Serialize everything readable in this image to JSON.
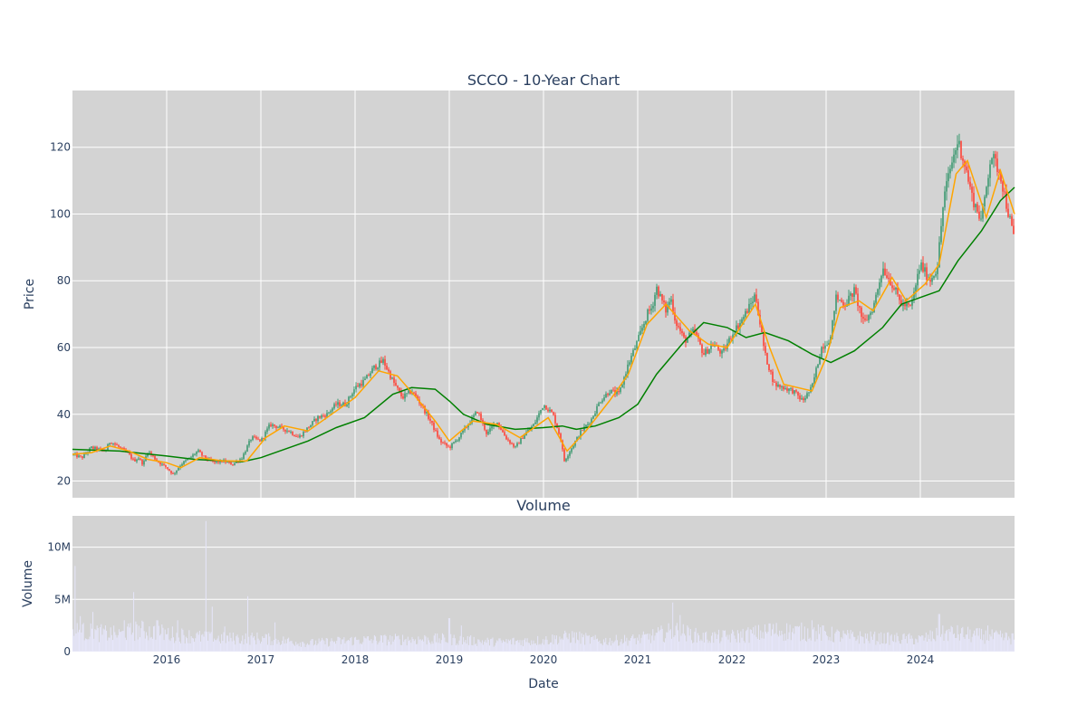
{
  "chart_data": [
    {
      "type": "candlestick",
      "title": "SCCO - 10-Year Chart",
      "ylabel": "Price",
      "xlabel": "",
      "x_range": [
        2015.0,
        2025.0
      ],
      "ylim": [
        15,
        137
      ],
      "yticks": [
        "20",
        "40",
        "60",
        "80",
        "100",
        "120"
      ],
      "ytick_values": [
        20,
        40,
        60,
        80,
        100,
        120
      ],
      "grid": true,
      "colors": {
        "increasing": "#3d9970",
        "decreasing": "#ff4136",
        "sma50": "orange",
        "sma200": "green",
        "background": "#d3d3d3",
        "grid": "#ffffff"
      },
      "close_anchors": [
        [
          2015.0,
          28
        ],
        [
          2015.1,
          27
        ],
        [
          2015.2,
          30
        ],
        [
          2015.35,
          29
        ],
        [
          2015.4,
          32
        ],
        [
          2015.5,
          30
        ],
        [
          2015.6,
          28
        ],
        [
          2015.65,
          26
        ],
        [
          2015.7,
          27
        ],
        [
          2015.75,
          25
        ],
        [
          2015.8,
          29
        ],
        [
          2015.9,
          26
        ],
        [
          2016.0,
          24
        ],
        [
          2016.07,
          22
        ],
        [
          2016.15,
          25
        ],
        [
          2016.25,
          27
        ],
        [
          2016.33,
          29
        ],
        [
          2016.4,
          27
        ],
        [
          2016.5,
          25.5
        ],
        [
          2016.6,
          26
        ],
        [
          2016.7,
          25
        ],
        [
          2016.8,
          27
        ],
        [
          2016.9,
          33
        ],
        [
          2017.0,
          32
        ],
        [
          2017.1,
          37
        ],
        [
          2017.2,
          36
        ],
        [
          2017.3,
          35
        ],
        [
          2017.4,
          33
        ],
        [
          2017.5,
          36
        ],
        [
          2017.6,
          39
        ],
        [
          2017.7,
          40
        ],
        [
          2017.8,
          43
        ],
        [
          2017.9,
          43
        ],
        [
          2018.0,
          48
        ],
        [
          2018.1,
          50
        ],
        [
          2018.2,
          54
        ],
        [
          2018.3,
          56
        ],
        [
          2018.4,
          50
        ],
        [
          2018.5,
          45
        ],
        [
          2018.6,
          47
        ],
        [
          2018.7,
          43
        ],
        [
          2018.8,
          38
        ],
        [
          2018.9,
          32
        ],
        [
          2019.0,
          30
        ],
        [
          2019.1,
          33
        ],
        [
          2019.2,
          37
        ],
        [
          2019.3,
          41
        ],
        [
          2019.4,
          34
        ],
        [
          2019.5,
          38
        ],
        [
          2019.6,
          33
        ],
        [
          2019.7,
          30
        ],
        [
          2019.8,
          34
        ],
        [
          2019.9,
          37
        ],
        [
          2020.0,
          43
        ],
        [
          2020.1,
          40
        ],
        [
          2020.18,
          33
        ],
        [
          2020.22,
          26
        ],
        [
          2020.3,
          30
        ],
        [
          2020.4,
          35
        ],
        [
          2020.5,
          38
        ],
        [
          2020.6,
          44
        ],
        [
          2020.7,
          47
        ],
        [
          2020.8,
          46
        ],
        [
          2020.9,
          55
        ],
        [
          2021.0,
          62
        ],
        [
          2021.1,
          70
        ],
        [
          2021.15,
          72
        ],
        [
          2021.2,
          78
        ],
        [
          2021.3,
          71
        ],
        [
          2021.35,
          75
        ],
        [
          2021.4,
          68
        ],
        [
          2021.5,
          62
        ],
        [
          2021.6,
          65
        ],
        [
          2021.7,
          58
        ],
        [
          2021.8,
          61
        ],
        [
          2021.9,
          58
        ],
        [
          2022.0,
          64
        ],
        [
          2022.1,
          68
        ],
        [
          2022.2,
          73
        ],
        [
          2022.25,
          76
        ],
        [
          2022.35,
          58
        ],
        [
          2022.45,
          49
        ],
        [
          2022.55,
          48
        ],
        [
          2022.65,
          47
        ],
        [
          2022.75,
          44
        ],
        [
          2022.85,
          48
        ],
        [
          2022.95,
          60
        ],
        [
          2023.05,
          63
        ],
        [
          2023.1,
          75
        ],
        [
          2023.2,
          73
        ],
        [
          2023.3,
          77
        ],
        [
          2023.4,
          67
        ],
        [
          2023.5,
          72
        ],
        [
          2023.6,
          84
        ],
        [
          2023.7,
          79
        ],
        [
          2023.8,
          73
        ],
        [
          2023.9,
          72
        ],
        [
          2024.0,
          85
        ],
        [
          2024.1,
          80
        ],
        [
          2024.18,
          84
        ],
        [
          2024.25,
          105
        ],
        [
          2024.33,
          115
        ],
        [
          2024.4,
          122
        ],
        [
          2024.48,
          114
        ],
        [
          2024.55,
          105
        ],
        [
          2024.65,
          98
        ],
        [
          2024.75,
          118
        ],
        [
          2024.85,
          112
        ],
        [
          2024.92,
          102
        ],
        [
          2025.0,
          92
        ]
      ],
      "series": [
        {
          "name": "",
          "style": "line",
          "color": "green",
          "points": [
            [
              2015.0,
              29.5
            ],
            [
              2015.5,
              29
            ],
            [
              2016.0,
              27.5
            ],
            [
              2016.3,
              26.5
            ],
            [
              2016.8,
              25.8
            ],
            [
              2017.0,
              27
            ],
            [
              2017.5,
              32
            ],
            [
              2017.8,
              36
            ],
            [
              2018.1,
              39
            ],
            [
              2018.4,
              46
            ],
            [
              2018.6,
              48
            ],
            [
              2018.85,
              47.5
            ],
            [
              2019.0,
              44
            ],
            [
              2019.15,
              40
            ],
            [
              2019.4,
              37
            ],
            [
              2019.7,
              35.5
            ],
            [
              2020.0,
              36
            ],
            [
              2020.2,
              36.5
            ],
            [
              2020.35,
              35.5
            ],
            [
              2020.55,
              36.5
            ],
            [
              2020.8,
              39
            ],
            [
              2021.0,
              43
            ],
            [
              2021.2,
              52
            ],
            [
              2021.5,
              62
            ],
            [
              2021.7,
              67.5
            ],
            [
              2021.95,
              66
            ],
            [
              2022.15,
              63
            ],
            [
              2022.35,
              64.5
            ],
            [
              2022.6,
              62
            ],
            [
              2022.85,
              58
            ],
            [
              2023.05,
              55.5
            ],
            [
              2023.3,
              59
            ],
            [
              2023.6,
              66
            ],
            [
              2023.8,
              73
            ],
            [
              2024.0,
              75
            ],
            [
              2024.2,
              77
            ],
            [
              2024.4,
              86
            ],
            [
              2024.65,
              95
            ],
            [
              2024.85,
              104
            ],
            [
              2025.0,
              108
            ]
          ]
        },
        {
          "name": "",
          "style": "line",
          "color": "orange",
          "points": [
            [
              2015.0,
              28
            ],
            [
              2015.2,
              28.5
            ],
            [
              2015.4,
              30.5
            ],
            [
              2015.6,
              29
            ],
            [
              2015.8,
              26.5
            ],
            [
              2016.0,
              25.5
            ],
            [
              2016.15,
              24
            ],
            [
              2016.35,
              27
            ],
            [
              2016.6,
              26
            ],
            [
              2016.85,
              26
            ],
            [
              2017.05,
              33
            ],
            [
              2017.25,
              36.5
            ],
            [
              2017.5,
              35
            ],
            [
              2017.75,
              40
            ],
            [
              2018.0,
              45
            ],
            [
              2018.25,
              53
            ],
            [
              2018.45,
              51.5
            ],
            [
              2018.65,
              45
            ],
            [
              2018.85,
              38
            ],
            [
              2019.0,
              32
            ],
            [
              2019.25,
              38
            ],
            [
              2019.5,
              37
            ],
            [
              2019.75,
              33
            ],
            [
              2020.05,
              39
            ],
            [
              2020.25,
              29
            ],
            [
              2020.45,
              35
            ],
            [
              2020.7,
              44
            ],
            [
              2020.9,
              52
            ],
            [
              2021.1,
              67
            ],
            [
              2021.3,
              73
            ],
            [
              2021.55,
              65
            ],
            [
              2021.75,
              61
            ],
            [
              2021.95,
              60
            ],
            [
              2022.25,
              73
            ],
            [
              2022.4,
              60
            ],
            [
              2022.55,
              49
            ],
            [
              2022.85,
              47
            ],
            [
              2023.0,
              57
            ],
            [
              2023.15,
              72
            ],
            [
              2023.35,
              74
            ],
            [
              2023.5,
              71
            ],
            [
              2023.7,
              81
            ],
            [
              2023.85,
              74
            ],
            [
              2024.05,
              79
            ],
            [
              2024.2,
              85
            ],
            [
              2024.38,
              112
            ],
            [
              2024.5,
              116
            ],
            [
              2024.7,
              99
            ],
            [
              2024.85,
              113
            ],
            [
              2025.0,
              100
            ]
          ]
        }
      ]
    },
    {
      "type": "bar",
      "title": "Volume",
      "ylabel": "Volume",
      "xlabel": "Date",
      "x_range": [
        2015.0,
        2025.0
      ],
      "ylim": [
        0,
        13
      ],
      "value_unit": "M",
      "yticks": [
        "0",
        "5M",
        "10M"
      ],
      "ytick_values": [
        0,
        5,
        10
      ],
      "xticks": [
        "2016",
        "2017",
        "2018",
        "2019",
        "2020",
        "2021",
        "2022",
        "2023",
        "2024"
      ],
      "xtick_values": [
        2016,
        2017,
        2018,
        2019,
        2020,
        2021,
        2022,
        2023,
        2024
      ],
      "color": "#e6e6fa",
      "baseline_anchors": [
        [
          2015.0,
          2.2
        ],
        [
          2015.5,
          1.8
        ],
        [
          2015.7,
          2.3
        ],
        [
          2016.0,
          1.9
        ],
        [
          2016.5,
          1.4
        ],
        [
          2017.0,
          1.4
        ],
        [
          2017.5,
          0.9
        ],
        [
          2018.0,
          1.2
        ],
        [
          2018.5,
          1.3
        ],
        [
          2019.0,
          1.3
        ],
        [
          2019.5,
          1.0
        ],
        [
          2020.0,
          1.2
        ],
        [
          2020.3,
          1.6
        ],
        [
          2020.6,
          1.1
        ],
        [
          2021.0,
          1.3
        ],
        [
          2021.4,
          2.2
        ],
        [
          2021.7,
          1.5
        ],
        [
          2022.0,
          1.6
        ],
        [
          2022.5,
          2.2
        ],
        [
          2022.9,
          2.0
        ],
        [
          2023.2,
          1.6
        ],
        [
          2023.6,
          1.4
        ],
        [
          2024.0,
          1.3
        ],
        [
          2024.3,
          2.0
        ],
        [
          2024.6,
          1.7
        ],
        [
          2025.0,
          1.4
        ]
      ],
      "spikes": [
        [
          2015.03,
          8.2
        ],
        [
          2015.08,
          3.4
        ],
        [
          2015.22,
          3.8
        ],
        [
          2015.55,
          3.0
        ],
        [
          2015.65,
          5.7
        ],
        [
          2015.9,
          3.0
        ],
        [
          2016.12,
          3.0
        ],
        [
          2016.42,
          12.5
        ],
        [
          2016.48,
          4.3
        ],
        [
          2016.62,
          2.4
        ],
        [
          2016.86,
          5.3
        ],
        [
          2017.15,
          2.8
        ],
        [
          2019.0,
          3.2
        ],
        [
          2019.13,
          2.5
        ],
        [
          2021.37,
          4.7
        ],
        [
          2021.45,
          3.5
        ],
        [
          2022.4,
          2.7
        ],
        [
          2022.85,
          3.0
        ],
        [
          2024.2,
          3.6
        ],
        [
          2024.72,
          2.5
        ]
      ]
    }
  ]
}
